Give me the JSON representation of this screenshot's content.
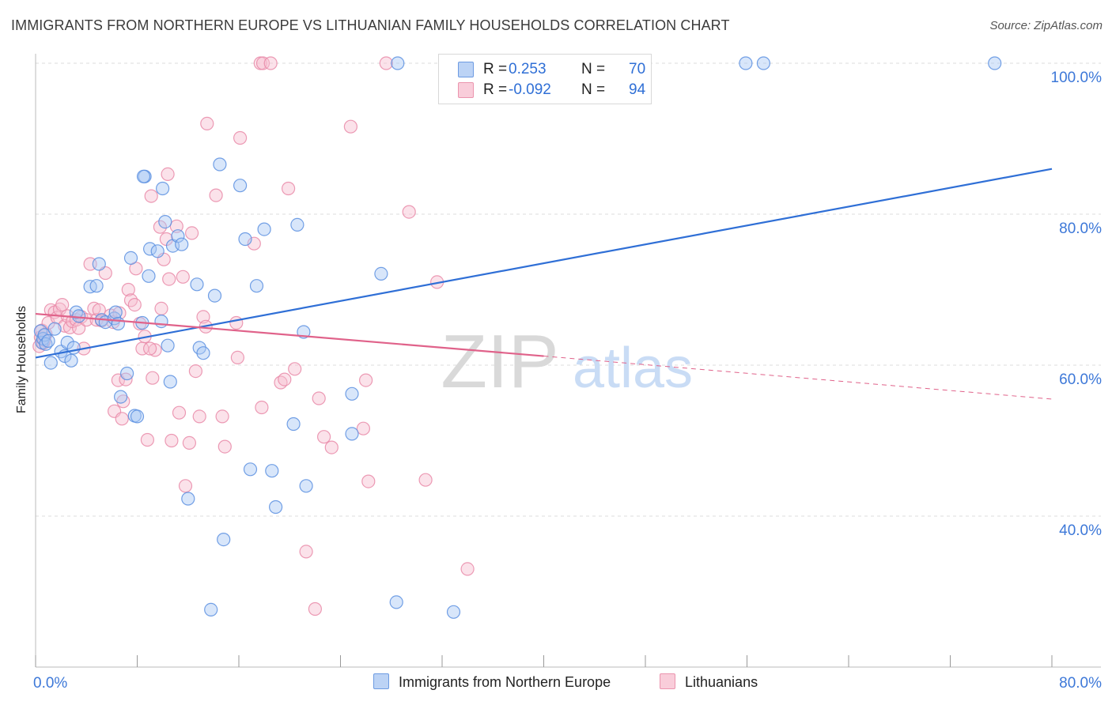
{
  "title": "IMMIGRANTS FROM NORTHERN EUROPE VS LITHUANIAN FAMILY HOUSEHOLDS CORRELATION CHART",
  "source": "Source: ZipAtlas.com",
  "watermark": {
    "zip": "ZIP",
    "atlas": "atlas"
  },
  "legend": {
    "rows": [
      {
        "r_label": "R =",
        "r_value": "0.253",
        "n_label": "N =",
        "n_value": "70",
        "color": "#8db4ee"
      },
      {
        "r_label": "R =",
        "r_value": "-0.092",
        "n_label": "N =",
        "n_value": "94",
        "color": "#f4a9c0"
      }
    ]
  },
  "bottom_legend": [
    {
      "label": "Immigrants from Northern Europe",
      "color": "#8db4ee"
    },
    {
      "label": "Lithuanians",
      "color": "#f4a9c0"
    }
  ],
  "colors": {
    "blue": "#5b8fe0",
    "blue_fill": "#a9c7f3",
    "blue_line": "#2f6fd6",
    "pink": "#e98aa8",
    "pink_fill": "#f6bfd0",
    "pink_line": "#e0628a",
    "axis_text": "#3d78d8",
    "grid": "#dddddd"
  },
  "chart_data": {
    "type": "scatter",
    "title": "IMMIGRANTS FROM NORTHERN EUROPE VS LITHUANIAN FAMILY HOUSEHOLDS CORRELATION CHART",
    "xlabel": "",
    "ylabel": "Family Households",
    "xlim": [
      0,
      80
    ],
    "ylim": [
      20,
      102
    ],
    "x_tick_labels": [
      {
        "value": 0,
        "label": "0.0%"
      },
      {
        "value": 80,
        "label": "80.0%"
      }
    ],
    "y_tick_labels": [
      {
        "value": 40,
        "label": "40.0%"
      },
      {
        "value": 60,
        "label": "60.0%"
      },
      {
        "value": 80,
        "label": "80.0%"
      },
      {
        "value": 100,
        "label": "100.0%"
      }
    ],
    "grid": true,
    "legend_position": "top-center",
    "series": [
      {
        "name": "Immigrants from Northern Europe",
        "color": "#8db4ee",
        "points": [
          [
            0.4,
            64.5
          ],
          [
            0.5,
            63.0
          ],
          [
            0.6,
            63.5
          ],
          [
            0.7,
            64.0
          ],
          [
            0.8,
            62.8
          ],
          [
            1.0,
            63.2
          ],
          [
            1.2,
            60.3
          ],
          [
            1.5,
            64.8
          ],
          [
            2.0,
            61.8
          ],
          [
            2.3,
            61.2
          ],
          [
            2.5,
            63.0
          ],
          [
            2.8,
            60.6
          ],
          [
            3.0,
            62.3
          ],
          [
            3.2,
            67.0
          ],
          [
            3.4,
            66.5
          ],
          [
            4.3,
            70.4
          ],
          [
            4.8,
            70.5
          ],
          [
            5.0,
            73.4
          ],
          [
            5.2,
            66.0
          ],
          [
            5.5,
            65.7
          ],
          [
            6.2,
            66.2
          ],
          [
            6.3,
            67.0
          ],
          [
            6.5,
            65.5
          ],
          [
            6.7,
            55.8
          ],
          [
            7.2,
            58.9
          ],
          [
            7.5,
            74.2
          ],
          [
            7.8,
            53.3
          ],
          [
            8.0,
            53.2
          ],
          [
            8.4,
            65.6
          ],
          [
            8.6,
            85.0
          ],
          [
            8.9,
            71.8
          ],
          [
            9.0,
            75.4
          ],
          [
            9.6,
            75.1
          ],
          [
            9.9,
            65.8
          ],
          [
            10.0,
            83.4
          ],
          [
            10.2,
            79.0
          ],
          [
            10.4,
            62.6
          ],
          [
            10.6,
            57.8
          ],
          [
            10.8,
            75.8
          ],
          [
            11.2,
            77.1
          ],
          [
            11.5,
            76.0
          ],
          [
            12.0,
            42.3
          ],
          [
            12.7,
            70.7
          ],
          [
            12.9,
            62.3
          ],
          [
            13.2,
            61.6
          ],
          [
            13.8,
            27.6
          ],
          [
            14.1,
            69.2
          ],
          [
            14.5,
            86.6
          ],
          [
            14.8,
            36.9
          ],
          [
            16.1,
            83.8
          ],
          [
            16.5,
            76.7
          ],
          [
            16.9,
            46.2
          ],
          [
            17.4,
            70.5
          ],
          [
            18.0,
            78.0
          ],
          [
            18.6,
            46.0
          ],
          [
            18.9,
            41.2
          ],
          [
            20.3,
            52.2
          ],
          [
            20.6,
            78.6
          ],
          [
            21.1,
            64.4
          ],
          [
            21.3,
            44.0
          ],
          [
            24.9,
            50.9
          ],
          [
            24.9,
            56.2
          ],
          [
            27.2,
            72.1
          ],
          [
            28.4,
            28.6
          ],
          [
            28.5,
            100.0
          ],
          [
            32.9,
            27.3
          ],
          [
            55.9,
            100.0
          ],
          [
            57.3,
            100.0
          ],
          [
            75.5,
            100.0
          ],
          [
            8.5,
            85.0
          ]
        ]
      },
      {
        "name": "Lithuanians",
        "color": "#f4a9c0",
        "points": [
          [
            0.3,
            62.5
          ],
          [
            0.4,
            63.7
          ],
          [
            0.5,
            64.6
          ],
          [
            0.6,
            62.9
          ],
          [
            0.7,
            63.3
          ],
          [
            0.8,
            64.1
          ],
          [
            1.0,
            65.6
          ],
          [
            1.2,
            67.3
          ],
          [
            1.5,
            67.0
          ],
          [
            1.7,
            66.3
          ],
          [
            1.9,
            67.4
          ],
          [
            2.1,
            68.0
          ],
          [
            2.3,
            65.2
          ],
          [
            2.5,
            66.5
          ],
          [
            2.7,
            65.0
          ],
          [
            2.9,
            65.8
          ],
          [
            3.2,
            66.0
          ],
          [
            3.4,
            64.9
          ],
          [
            3.6,
            66.4
          ],
          [
            3.8,
            62.2
          ],
          [
            4.0,
            66.0
          ],
          [
            4.3,
            73.4
          ],
          [
            4.6,
            67.5
          ],
          [
            4.8,
            66.0
          ],
          [
            5.0,
            67.3
          ],
          [
            5.2,
            65.9
          ],
          [
            5.5,
            72.2
          ],
          [
            5.9,
            66.6
          ],
          [
            6.1,
            65.7
          ],
          [
            6.2,
            53.9
          ],
          [
            6.5,
            58.0
          ],
          [
            6.8,
            52.9
          ],
          [
            6.9,
            55.2
          ],
          [
            7.1,
            58.1
          ],
          [
            7.3,
            70.0
          ],
          [
            7.5,
            68.6
          ],
          [
            7.8,
            68.0
          ],
          [
            7.9,
            72.8
          ],
          [
            8.2,
            65.5
          ],
          [
            8.4,
            62.2
          ],
          [
            8.6,
            63.8
          ],
          [
            8.8,
            50.1
          ],
          [
            9.1,
            82.4
          ],
          [
            9.2,
            58.3
          ],
          [
            9.4,
            62.0
          ],
          [
            9.8,
            78.3
          ],
          [
            9.9,
            67.5
          ],
          [
            10.1,
            74.0
          ],
          [
            10.3,
            76.7
          ],
          [
            10.4,
            85.3
          ],
          [
            10.5,
            71.4
          ],
          [
            10.7,
            50.0
          ],
          [
            11.1,
            78.4
          ],
          [
            11.3,
            53.7
          ],
          [
            11.6,
            71.7
          ],
          [
            11.8,
            44.0
          ],
          [
            12.1,
            49.7
          ],
          [
            12.3,
            77.5
          ],
          [
            12.6,
            59.2
          ],
          [
            12.9,
            53.2
          ],
          [
            13.2,
            66.4
          ],
          [
            13.4,
            65.1
          ],
          [
            13.5,
            92.0
          ],
          [
            14.2,
            82.5
          ],
          [
            14.7,
            53.2
          ],
          [
            14.9,
            49.2
          ],
          [
            15.8,
            65.6
          ],
          [
            15.9,
            61.0
          ],
          [
            16.1,
            90.1
          ],
          [
            17.2,
            76.1
          ],
          [
            17.7,
            100.0
          ],
          [
            17.8,
            54.4
          ],
          [
            17.9,
            100.0
          ],
          [
            18.5,
            100.0
          ],
          [
            19.3,
            57.7
          ],
          [
            19.6,
            58.1
          ],
          [
            19.9,
            83.4
          ],
          [
            20.4,
            59.5
          ],
          [
            21.3,
            35.3
          ],
          [
            22.0,
            27.7
          ],
          [
            22.3,
            55.6
          ],
          [
            22.7,
            50.5
          ],
          [
            23.3,
            49.1
          ],
          [
            24.8,
            91.6
          ],
          [
            25.8,
            51.6
          ],
          [
            26.0,
            58.0
          ],
          [
            26.2,
            44.6
          ],
          [
            27.6,
            100.0
          ],
          [
            29.4,
            80.3
          ],
          [
            30.7,
            44.8
          ],
          [
            31.6,
            71.0
          ],
          [
            34.0,
            33.0
          ],
          [
            9.0,
            62.2
          ],
          [
            6.6,
            66.9
          ]
        ]
      }
    ],
    "trend_lines": [
      {
        "series": "Immigrants from Northern Europe",
        "x0": 0,
        "y0": 61.0,
        "x1": 80,
        "y1": 86.0,
        "style": "solid"
      },
      {
        "series": "Lithuanians",
        "x0": 0,
        "y0": 66.8,
        "x1": 40,
        "y1": 61.2,
        "style": "solid"
      },
      {
        "series": "Lithuanians",
        "x0": 40,
        "y0": 61.2,
        "x1": 80,
        "y1": 55.5,
        "style": "dashed"
      }
    ]
  }
}
